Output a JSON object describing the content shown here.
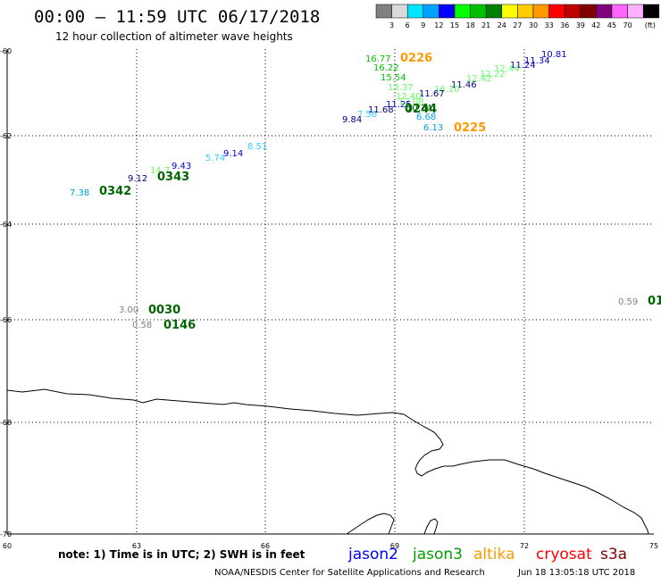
{
  "header": {
    "title": "00:00 – 11:59 UTC 06/17/2018",
    "subtitle": "12 hour collection of altimeter wave heights"
  },
  "colorbar": {
    "unit": "(ft)",
    "bins": [
      {
        "label": "",
        "color": "#808080"
      },
      {
        "label": "3",
        "color": "#d9d9d9"
      },
      {
        "label": "6",
        "color": "#00e5ff"
      },
      {
        "label": "9",
        "color": "#00a0ff"
      },
      {
        "label": "12",
        "color": "#0000ff"
      },
      {
        "label": "15",
        "color": "#00ff00"
      },
      {
        "label": "18",
        "color": "#00c000"
      },
      {
        "label": "21",
        "color": "#008000"
      },
      {
        "label": "24",
        "color": "#ffff00"
      },
      {
        "label": "27",
        "color": "#ffcc00"
      },
      {
        "label": "30",
        "color": "#ff9900"
      },
      {
        "label": "33",
        "color": "#ff0000"
      },
      {
        "label": "36",
        "color": "#c00000"
      },
      {
        "label": "39",
        "color": "#800000"
      },
      {
        "label": "42",
        "color": "#800080"
      },
      {
        "label": "45",
        "color": "#ff66ff"
      },
      {
        "label": "70",
        "color": "#ffb0ff"
      },
      {
        "label": "",
        "color": "#000000"
      }
    ]
  },
  "axes": {
    "lon_ticks": [
      "60",
      "63",
      "66",
      "69",
      "72",
      "75"
    ],
    "lat_ticks": [
      "-60",
      "-62",
      "-64",
      "-66",
      "-68",
      "-70"
    ]
  },
  "observations": [
    {
      "text": "16.77",
      "color": "#00c000"
    },
    {
      "text": "0226",
      "color": "#ff9900"
    },
    {
      "text": "16.22",
      "color": "#00c000"
    },
    {
      "text": "15.54",
      "color": "#00c000"
    },
    {
      "text": "10.81",
      "color": "#0000c8"
    },
    {
      "text": "11.34",
      "color": "#0000c8"
    },
    {
      "text": "11.24",
      "color": "#0000c8"
    },
    {
      "text": "12.44",
      "color": "#66ff66"
    },
    {
      "text": "12.22",
      "color": "#66ff66"
    },
    {
      "text": "12.42",
      "color": "#66ff66"
    },
    {
      "text": "11.46",
      "color": "#000080"
    },
    {
      "text": "16.10",
      "color": "#66ff66"
    },
    {
      "text": "13.37",
      "color": "#66ff66"
    },
    {
      "text": "11.67",
      "color": "#000080"
    },
    {
      "text": "12.40",
      "color": "#66ff66"
    },
    {
      "text": "12.08",
      "color": "#66ff66"
    },
    {
      "text": "11.25",
      "color": "#0000c8"
    },
    {
      "text": "10.24",
      "color": "#006400"
    },
    {
      "text": "0244",
      "color": "#006400"
    },
    {
      "text": "11.68",
      "color": "#000080"
    },
    {
      "text": "7.56",
      "color": "#33ccff"
    },
    {
      "text": "9.84",
      "color": "#000080"
    },
    {
      "text": "6.68",
      "color": "#00a0e0"
    },
    {
      "text": "6.13",
      "color": "#00a0e0"
    },
    {
      "text": "0225",
      "color": "#ff9900"
    },
    {
      "text": "8.51",
      "color": "#33ccff"
    },
    {
      "text": "9.14",
      "color": "#0000c8"
    },
    {
      "text": "5.74",
      "color": "#33ccff"
    },
    {
      "text": "9.43",
      "color": "#0000c8"
    },
    {
      "text": "14.7",
      "color": "#66ff66"
    },
    {
      "text": "0343",
      "color": "#006400"
    },
    {
      "text": "9.12",
      "color": "#000080"
    },
    {
      "text": "7.38",
      "color": "#00a0e0"
    },
    {
      "text": "0342",
      "color": "#006400"
    },
    {
      "text": "3.00",
      "color": "#808080"
    },
    {
      "text": "0030",
      "color": "#006400"
    },
    {
      "text": "0.58",
      "color": "#808080"
    },
    {
      "text": "0146",
      "color": "#006400"
    },
    {
      "text": "0.59",
      "color": "#808080"
    },
    {
      "text": "01",
      "color": "#006400"
    }
  ],
  "footer": {
    "note": "note: 1) Time is in UTC; 2) SWH is in feet",
    "legend": [
      {
        "name": "jason2",
        "color": "#0000ff"
      },
      {
        "name": "jason3",
        "color": "#00a000"
      },
      {
        "name": "altika",
        "color": "#ff9900"
      },
      {
        "name": "cryosat",
        "color": "#ff0000"
      },
      {
        "name": "s3a",
        "color": "#800000"
      }
    ],
    "credit": "NOAA/NESDIS Center for Satellite Applications and Research",
    "timestamp": "Jun 18 13:05:18 UTC 2018"
  }
}
